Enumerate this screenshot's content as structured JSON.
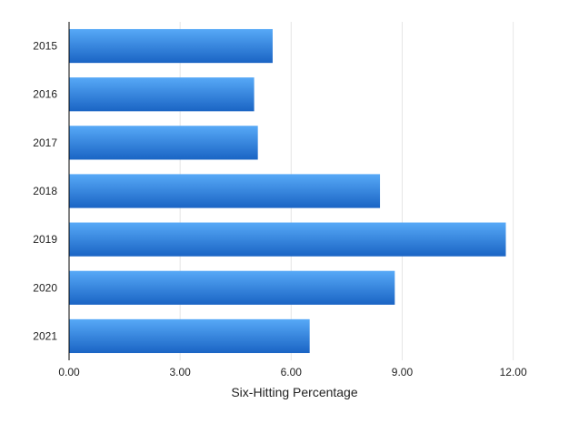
{
  "chart_data": {
    "type": "bar",
    "orientation": "horizontal",
    "title": "",
    "xlabel": "Six-Hitting Percentage",
    "ylabel": "",
    "categories": [
      "2015",
      "2016",
      "2017",
      "2018",
      "2019",
      "2020",
      "2021"
    ],
    "values": [
      5.5,
      5.0,
      5.1,
      8.4,
      11.8,
      8.8,
      6.5
    ],
    "xlim": [
      0,
      12.5
    ],
    "x_ticks": [
      "0.00",
      "3.00",
      "6.00",
      "9.00",
      "12.00"
    ],
    "x_tick_values": [
      0,
      3,
      6,
      9,
      12
    ],
    "grid": true,
    "legend": "none",
    "colors": {
      "bar_top": "#57a9f7",
      "bar_bottom": "#1a64c4",
      "grid": "#e6e6e6",
      "axis": "#000000"
    }
  }
}
